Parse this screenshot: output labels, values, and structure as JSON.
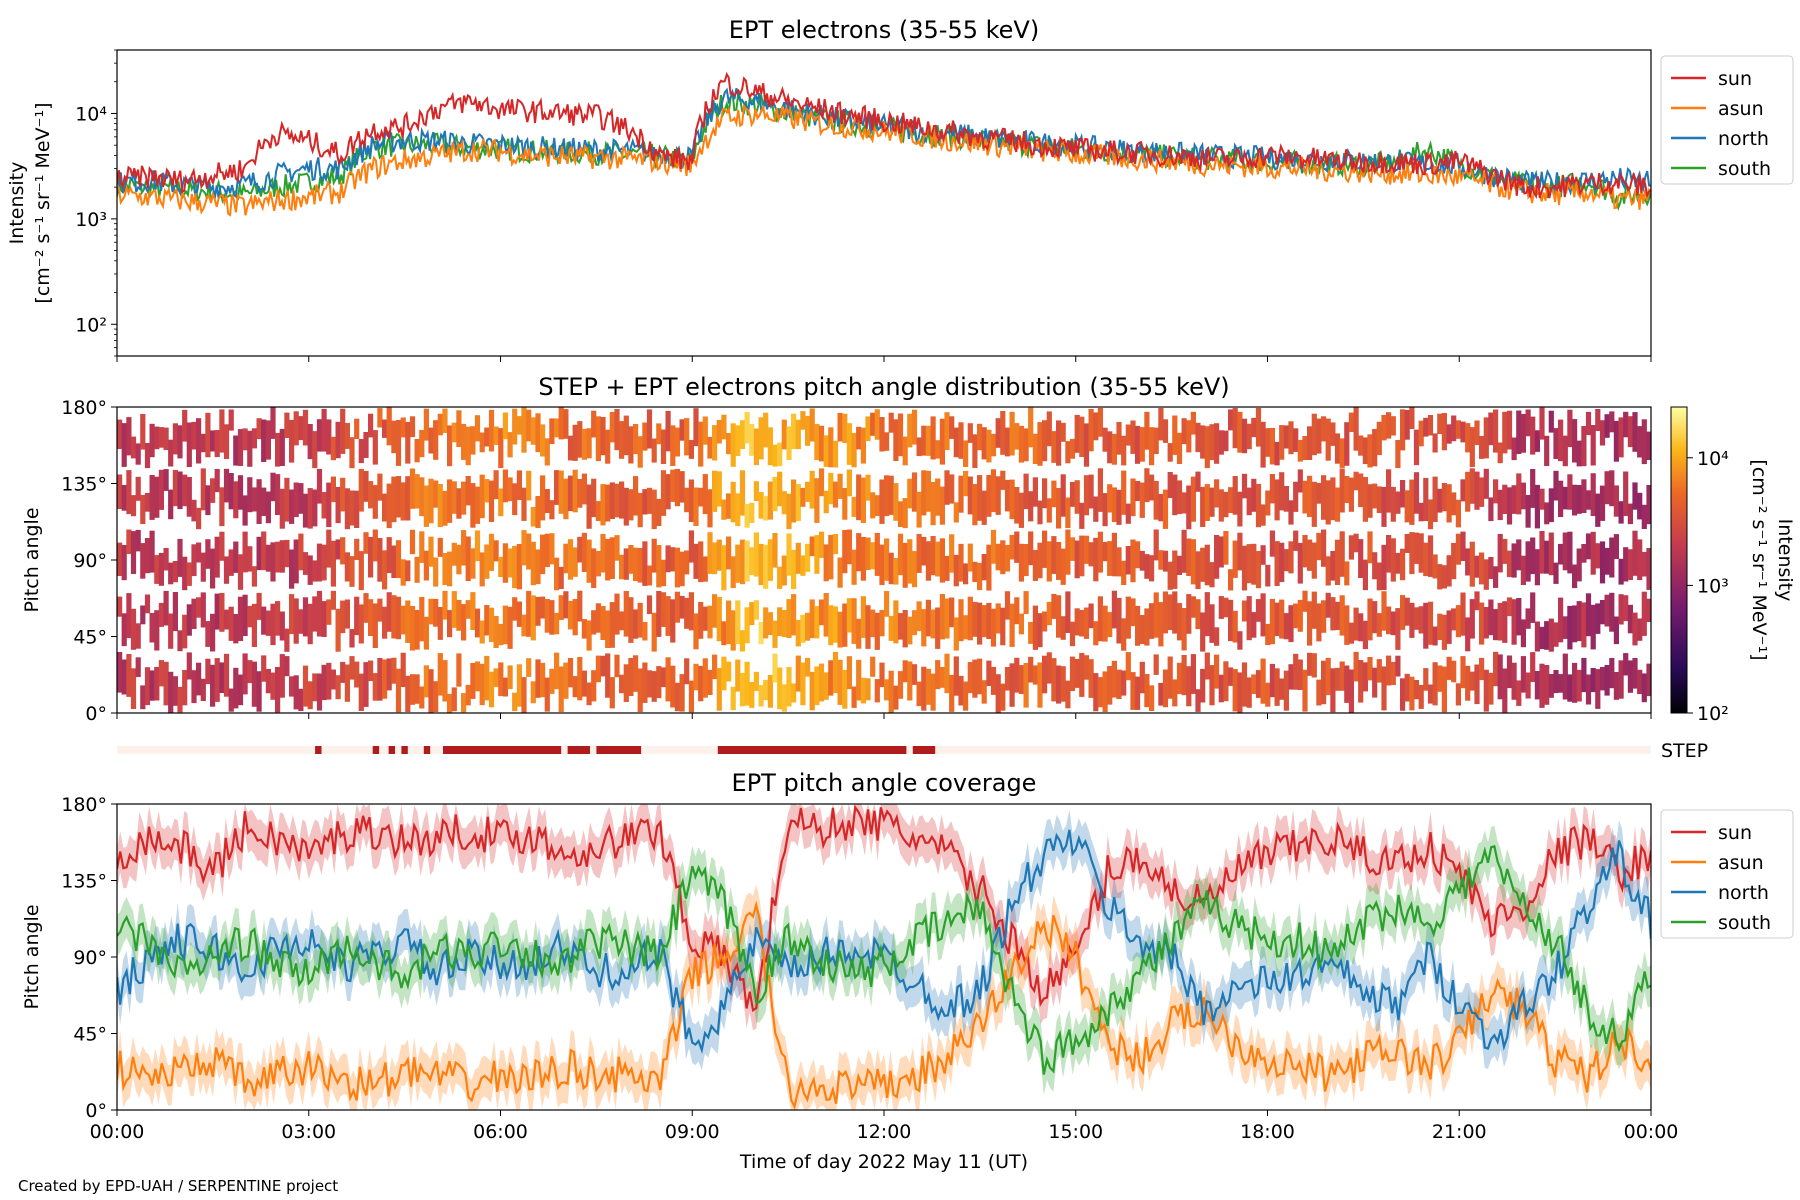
{
  "figure": {
    "credit": "Created by EPD-UAH / SERPENTINE project",
    "xlabel": "Time of day 2022 May 11 (UT)",
    "x_ticks": [
      "00:00",
      "03:00",
      "06:00",
      "09:00",
      "12:00",
      "15:00",
      "18:00",
      "21:00",
      "00:00"
    ]
  },
  "colors": {
    "sun": "#d62728",
    "asun": "#ff7f0e",
    "north": "#1f77b4",
    "south": "#2ca02c",
    "step_bar": "#b01c1c",
    "step_bg": "#fdf1ec"
  },
  "chart_data": [
    {
      "type": "line",
      "title": "EPT electrons (35-55 keV)",
      "ylabel": [
        "Intensity",
        "[cm⁻² s⁻¹ sr⁻¹ MeV⁻¹]"
      ],
      "yscale": "log",
      "ylim": [
        50,
        40000
      ],
      "y_ticks": [
        "10²",
        "10³",
        "10⁴"
      ],
      "legend": "outside-right",
      "x_hours": [
        0,
        0.5,
        1,
        1.5,
        2,
        2.5,
        3,
        3.5,
        4,
        4.5,
        5,
        5.5,
        6,
        6.5,
        7,
        7.5,
        8,
        8.5,
        9,
        9.5,
        10,
        10.5,
        11,
        11.5,
        12,
        12.5,
        13,
        13.5,
        14,
        14.5,
        15,
        15.5,
        16,
        16.5,
        17,
        17.5,
        18,
        18.5,
        19,
        19.5,
        20,
        20.5,
        21,
        21.5,
        22,
        22.5,
        23,
        23.5,
        24
      ],
      "series": [
        {
          "name": "sun",
          "values": [
            2400,
            2500,
            2300,
            2600,
            3000,
            6500,
            5500,
            4000,
            7000,
            7500,
            11000,
            13000,
            11000,
            10500,
            10000,
            9500,
            7000,
            4000,
            3500,
            20000,
            16000,
            13000,
            11000,
            9500,
            8500,
            7500,
            6800,
            6000,
            5500,
            5000,
            4600,
            4400,
            4200,
            4000,
            3800,
            3700,
            4000,
            3800,
            3600,
            3500,
            3500,
            3300,
            3500,
            2600,
            2000,
            2000,
            2200,
            2200,
            2000
          ]
        },
        {
          "name": "asun",
          "values": [
            1700,
            1600,
            1500,
            1400,
            1300,
            1500,
            1600,
            1800,
            3000,
            3600,
            4000,
            4500,
            4400,
            4000,
            3900,
            3800,
            3700,
            3500,
            3200,
            9000,
            10000,
            9000,
            8000,
            7500,
            6800,
            6200,
            5600,
            5200,
            4800,
            4400,
            4100,
            3900,
            3700,
            3500,
            3300,
            3200,
            3100,
            3000,
            2900,
            2800,
            2700,
            2600,
            2500,
            2100,
            1800,
            1700,
            1800,
            1500,
            1600
          ]
        },
        {
          "name": "north",
          "values": [
            2200,
            2300,
            2100,
            2000,
            2100,
            2600,
            3000,
            3000,
            5000,
            5600,
            5500,
            5200,
            5000,
            4800,
            4600,
            4500,
            4400,
            4200,
            3800,
            14000,
            13000,
            11000,
            9500,
            8500,
            7500,
            7000,
            6500,
            6000,
            5500,
            5200,
            4900,
            4600,
            4400,
            4200,
            4000,
            3900,
            3800,
            3700,
            3600,
            3500,
            3400,
            3300,
            3200,
            2600,
            2200,
            2200,
            2300,
            2400,
            2200
          ]
        },
        {
          "name": "south",
          "values": [
            2100,
            2000,
            1900,
            1800,
            1700,
            2000,
            2200,
            2600,
            4800,
            5000,
            5000,
            4700,
            4600,
            4400,
            4300,
            4200,
            4100,
            3900,
            3600,
            13000,
            12000,
            10000,
            8800,
            8000,
            7200,
            6600,
            6100,
            5600,
            5200,
            4900,
            4600,
            4300,
            4100,
            3900,
            3700,
            3600,
            3500,
            3400,
            3300,
            3300,
            3400,
            4500,
            3300,
            2500,
            2100,
            2000,
            2300,
            1600,
            1800
          ]
        }
      ]
    },
    {
      "type": "heatmap",
      "title": "STEP + EPT electrons pitch angle distribution (35-55 keV)",
      "ylabel": "Pitch angle",
      "ylim": [
        0,
        180
      ],
      "y_ticks": [
        "0°",
        "45°",
        "90°",
        "135°",
        "180°"
      ],
      "colorbar": {
        "label": "Intensity",
        "units": "[cm⁻² s⁻¹ sr⁻¹ MeV⁻¹]",
        "scale": "log",
        "range": [
          100,
          25000
        ],
        "ticks": [
          "10²",
          "10³",
          "10⁴"
        ]
      },
      "time_hours": [
        0,
        1,
        2,
        3,
        4,
        5,
        6,
        7,
        8,
        9,
        10,
        11,
        12,
        13,
        14,
        15,
        16,
        17,
        18,
        19,
        20,
        21,
        22,
        23
      ],
      "mean_intensity": [
        2000,
        1900,
        1800,
        2200,
        3500,
        5500,
        6500,
        5000,
        4500,
        4000,
        12000,
        8000,
        6000,
        5000,
        4500,
        4000,
        3800,
        3600,
        3500,
        3500,
        3300,
        3200,
        1500,
        1400
      ]
    },
    {
      "type": "bar",
      "title": "",
      "label": "STEP",
      "segments_hours": [
        [
          3.1,
          3.2
        ],
        [
          4.0,
          4.1
        ],
        [
          4.25,
          4.35
        ],
        [
          4.45,
          4.55
        ],
        [
          4.8,
          4.9
        ],
        [
          5.1,
          6.95
        ],
        [
          7.05,
          7.4
        ],
        [
          7.5,
          8.2
        ],
        [
          9.4,
          12.35
        ],
        [
          12.45,
          12.8
        ]
      ]
    },
    {
      "type": "line",
      "title": "EPT pitch angle coverage",
      "ylabel": "Pitch angle",
      "ylim": [
        0,
        180
      ],
      "y_ticks": [
        "0°",
        "45°",
        "90°",
        "135°",
        "180°"
      ],
      "legend": "outside-right",
      "shaded_band_deg": 12,
      "x_hours": [
        0,
        0.5,
        1,
        1.5,
        2,
        2.5,
        3,
        3.5,
        4,
        4.5,
        5,
        5.5,
        6,
        6.5,
        7,
        7.5,
        8,
        8.5,
        9,
        9.5,
        10,
        10.5,
        11,
        11.5,
        12,
        12.5,
        13,
        13.5,
        14,
        14.5,
        15,
        15.5,
        16,
        16.5,
        17,
        17.5,
        18,
        18.5,
        19,
        19.5,
        20,
        20.5,
        21,
        21.5,
        22,
        22.5,
        23,
        23.5,
        24
      ],
      "series": [
        {
          "name": "sun",
          "values": [
            150,
            160,
            155,
            140,
            165,
            160,
            150,
            162,
            165,
            158,
            160,
            165,
            160,
            162,
            150,
            155,
            160,
            165,
            100,
            90,
            60,
            170,
            165,
            170,
            168,
            160,
            150,
            130,
            100,
            70,
            90,
            140,
            150,
            130,
            120,
            140,
            150,
            155,
            160,
            150,
            145,
            155,
            140,
            110,
            120,
            150,
            160,
            140,
            150
          ]
        },
        {
          "name": "asun",
          "values": [
            25,
            20,
            22,
            30,
            15,
            20,
            25,
            18,
            15,
            22,
            20,
            15,
            20,
            18,
            25,
            22,
            20,
            15,
            80,
            90,
            115,
            10,
            15,
            12,
            14,
            20,
            30,
            50,
            80,
            110,
            90,
            40,
            30,
            50,
            60,
            40,
            30,
            25,
            20,
            30,
            35,
            25,
            40,
            70,
            60,
            30,
            20,
            40,
            30
          ]
        },
        {
          "name": "north",
          "values": [
            70,
            90,
            100,
            95,
            80,
            95,
            100,
            85,
            90,
            100,
            80,
            90,
            85,
            88,
            95,
            80,
            85,
            90,
            40,
            60,
            100,
            80,
            90,
            95,
            90,
            75,
            60,
            70,
            120,
            150,
            160,
            120,
            100,
            90,
            60,
            70,
            75,
            80,
            85,
            70,
            60,
            90,
            65,
            40,
            60,
            80,
            120,
            150,
            110
          ]
        },
        {
          "name": "south",
          "values": [
            105,
            100,
            80,
            90,
            100,
            85,
            80,
            95,
            90,
            75,
            95,
            90,
            100,
            92,
            85,
            100,
            95,
            90,
            140,
            120,
            70,
            100,
            90,
            80,
            85,
            100,
            110,
            120,
            70,
            30,
            40,
            60,
            80,
            100,
            120,
            110,
            100,
            100,
            90,
            110,
            120,
            110,
            130,
            150,
            120,
            100,
            60,
            40,
            80
          ]
        }
      ]
    }
  ]
}
